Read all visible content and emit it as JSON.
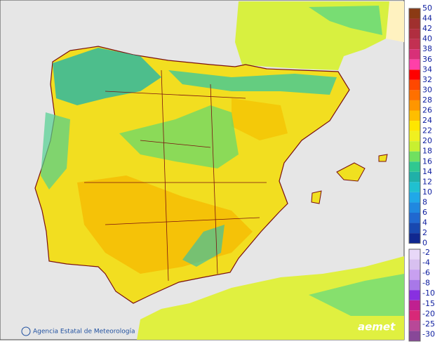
{
  "legend": {
    "upper": {
      "ticks": [
        50,
        44,
        42,
        40,
        38,
        36,
        34,
        32,
        30,
        28,
        26,
        24,
        22,
        20,
        18,
        16,
        14,
        12,
        10,
        8,
        6,
        4,
        2,
        0
      ],
      "colors": [
        "#8b3a14",
        "#a0302e",
        "#b02e40",
        "#c23052",
        "#d83078",
        "#ff40a8",
        "#ff0000",
        "#ff4800",
        "#ff7000",
        "#ff9600",
        "#ffbe00",
        "#ffe600",
        "#f0f020",
        "#c8f030",
        "#70e060",
        "#30c890",
        "#20b0a8",
        "#20c0d0",
        "#20a8e8",
        "#2088e0",
        "#2068d0",
        "#1848b0",
        "#102890"
      ]
    },
    "lower": {
      "ticks": [
        -2,
        -4,
        -6,
        -8,
        -10,
        -15,
        -20,
        -25,
        -30
      ],
      "colors": [
        "#e8d8f8",
        "#d8c0f0",
        "#c8a0f0",
        "#a878e8",
        "#8830e0",
        "#c02090",
        "#d82878",
        "#b84898",
        "#884898"
      ]
    }
  },
  "credit": "Agencia Estatal de Meteorología",
  "logo": "aemet"
}
